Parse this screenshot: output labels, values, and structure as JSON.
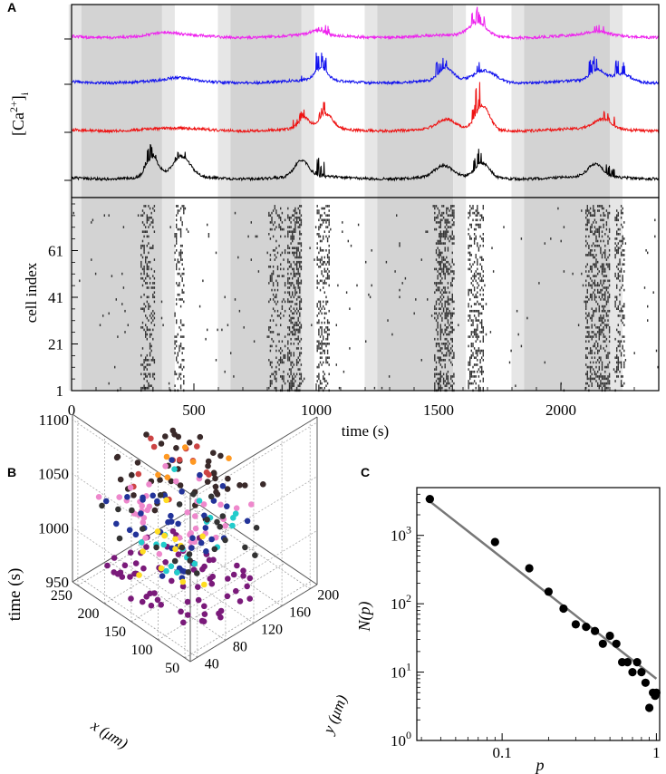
{
  "panel_labels": {
    "a": "A",
    "b": "B",
    "c": "C"
  },
  "chart_data": [
    {
      "id": "A-top",
      "type": "line",
      "ylabel": "[Ca2+]i",
      "ylabel_parts": {
        "base": "[Ca",
        "sup": "2+",
        "close": "]",
        "sub": "i"
      },
      "xlim": [
        0,
        2400
      ],
      "gray_bands": [
        [
          40,
          370
        ],
        [
          650,
          940
        ],
        [
          1250,
          1560
        ],
        [
          1850,
          2200
        ]
      ],
      "series": [
        {
          "name": "magenta cell",
          "color": "#ee22ee",
          "baseline": 40,
          "bumps": [
            [
              1660,
              14,
              50
            ],
            [
              1000,
              5,
              40
            ],
            [
              380,
              3,
              70
            ],
            [
              2150,
              4,
              60
            ]
          ],
          "spikes": [
            [
              1030,
              10
            ],
            [
              1650,
              18
            ],
            [
              1670,
              14
            ],
            [
              2150,
              8
            ]
          ]
        },
        {
          "name": "blue cell",
          "color": "#1111ee",
          "baseline": 90,
          "bumps": [
            [
              1020,
              14,
              35
            ],
            [
              1530,
              14,
              40
            ],
            [
              1690,
              12,
              60
            ],
            [
              2150,
              12,
              40
            ],
            [
              2250,
              8,
              50
            ],
            [
              440,
              3,
              60
            ]
          ],
          "spikes": [
            [
              930,
              14
            ],
            [
              1020,
              20
            ],
            [
              1510,
              20
            ],
            [
              1670,
              12
            ],
            [
              2140,
              22
            ],
            [
              2240,
              18
            ]
          ]
        },
        {
          "name": "red cell",
          "color": "#ee1111",
          "baseline": 143,
          "bumps": [
            [
              950,
              12,
              30
            ],
            [
              1040,
              16,
              40
            ],
            [
              1530,
              10,
              50
            ],
            [
              1680,
              26,
              40
            ],
            [
              2170,
              10,
              50
            ]
          ],
          "spikes": [
            [
              1030,
              22
            ],
            [
              1660,
              30
            ],
            [
              1650,
              20
            ],
            [
              930,
              10
            ],
            [
              2200,
              10
            ]
          ]
        },
        {
          "name": "black cell",
          "color": "#000000",
          "baseline": 196,
          "bumps": [
            [
              330,
              22,
              35
            ],
            [
              450,
              22,
              50
            ],
            [
              940,
              18,
              40
            ],
            [
              1520,
              12,
              50
            ],
            [
              1680,
              16,
              40
            ],
            [
              2140,
              14,
              40
            ]
          ],
          "spikes": [
            [
              320,
              16
            ],
            [
              1010,
              22
            ],
            [
              1650,
              18
            ],
            [
              2200,
              14
            ],
            [
              440,
              8
            ]
          ]
        }
      ]
    },
    {
      "id": "A-bottom",
      "type": "raster",
      "xlabel": "time (s)",
      "ylabel": "cell index",
      "xlim": [
        0,
        2400
      ],
      "xticks": [
        0,
        500,
        1000,
        1500,
        2000
      ],
      "xtick_labels": [
        "0",
        "500",
        "1000",
        "1500",
        "2000"
      ],
      "ylim": [
        1,
        81
      ],
      "yticks": [
        1,
        21,
        41,
        61
      ],
      "ytick_labels": [
        "1",
        "21",
        "41",
        "61"
      ],
      "dense_windows": [
        [
          280,
          340,
          0.35
        ],
        [
          420,
          460,
          0.3
        ],
        [
          800,
          870,
          0.25
        ],
        [
          880,
          940,
          0.5
        ],
        [
          1000,
          1050,
          0.45
        ],
        [
          1480,
          1560,
          0.5
        ],
        [
          1620,
          1680,
          0.45
        ],
        [
          2100,
          2200,
          0.45
        ],
        [
          2220,
          2260,
          0.4
        ]
      ],
      "background_rate": 0.006,
      "gray_bands": [
        [
          40,
          370
        ],
        [
          650,
          940
        ],
        [
          1250,
          1560
        ],
        [
          1850,
          2200
        ]
      ]
    },
    {
      "id": "B",
      "type": "scatter3d",
      "xlabel": "x (μm)",
      "ylabel": "y (μm)",
      "zlabel": "time (s)",
      "xticks": [
        50,
        100,
        150,
        200,
        250
      ],
      "xtick_labels": [
        "50",
        "100",
        "150",
        "200",
        "250"
      ],
      "yticks": [
        40,
        80,
        120,
        160,
        200
      ],
      "ytick_labels": [
        "40",
        "80",
        "120",
        "160",
        "200"
      ],
      "zticks": [
        950,
        1000,
        1050,
        1100
      ],
      "ztick_labels": [
        "950",
        "1000",
        "1050",
        "1100"
      ],
      "xlim": [
        40,
        260
      ],
      "ylim": [
        30,
        210
      ],
      "zlim": [
        950,
        1105
      ],
      "groups": [
        {
          "color": "#7a1a7a",
          "z": [
            955,
            975
          ],
          "count": 70
        },
        {
          "color": "#3a2a2a",
          "z": [
            1055,
            1070
          ],
          "count": 45
        },
        {
          "color": "#cc4444",
          "z": [
            1058,
            1068
          ],
          "count": 12
        },
        {
          "color": "#ee88cc",
          "z": [
            1010,
            1040
          ],
          "count": 40
        },
        {
          "color": "#223399",
          "z": [
            1000,
            1035
          ],
          "count": 40
        },
        {
          "color": "#22cccc",
          "z": [
            1005,
            1030
          ],
          "count": 18
        },
        {
          "color": "#ffdd22",
          "z": [
            975,
            1000
          ],
          "count": 12
        },
        {
          "color": "#ff9922",
          "z": [
            1060,
            1100
          ],
          "count": 6
        },
        {
          "color": "#333333",
          "z": [
            995,
            1030
          ],
          "count": 25
        }
      ]
    },
    {
      "id": "C",
      "type": "scatter",
      "scale": "log-log",
      "xlabel": "p",
      "ylabel": "N(p)",
      "xlim": [
        0.028,
        1.05
      ],
      "ylim": [
        1,
        5000
      ],
      "xticks": [
        0.1,
        1
      ],
      "xtick_labels": [
        "0.1",
        "1"
      ],
      "yticks": [
        1,
        10,
        100,
        1000
      ],
      "ytick_labels": [
        "10",
        "10",
        "10",
        "10"
      ],
      "ytick_exponents": [
        "0",
        "1",
        "2",
        "3"
      ],
      "points": [
        [
          0.034,
          3400
        ],
        [
          0.09,
          800
        ],
        [
          0.15,
          330
        ],
        [
          0.2,
          150
        ],
        [
          0.25,
          85
        ],
        [
          0.3,
          50
        ],
        [
          0.35,
          46
        ],
        [
          0.4,
          40
        ],
        [
          0.45,
          26
        ],
        [
          0.5,
          34
        ],
        [
          0.55,
          26
        ],
        [
          0.6,
          14
        ],
        [
          0.65,
          14
        ],
        [
          0.7,
          10
        ],
        [
          0.75,
          14
        ],
        [
          0.8,
          10
        ],
        [
          0.85,
          7
        ],
        [
          0.9,
          3
        ],
        [
          0.95,
          5
        ],
        [
          1.0,
          5
        ],
        [
          0.98,
          4.5
        ]
      ],
      "fit_line": {
        "from": [
          0.032,
          3500
        ],
        "to": [
          1.0,
          8
        ]
      }
    }
  ]
}
